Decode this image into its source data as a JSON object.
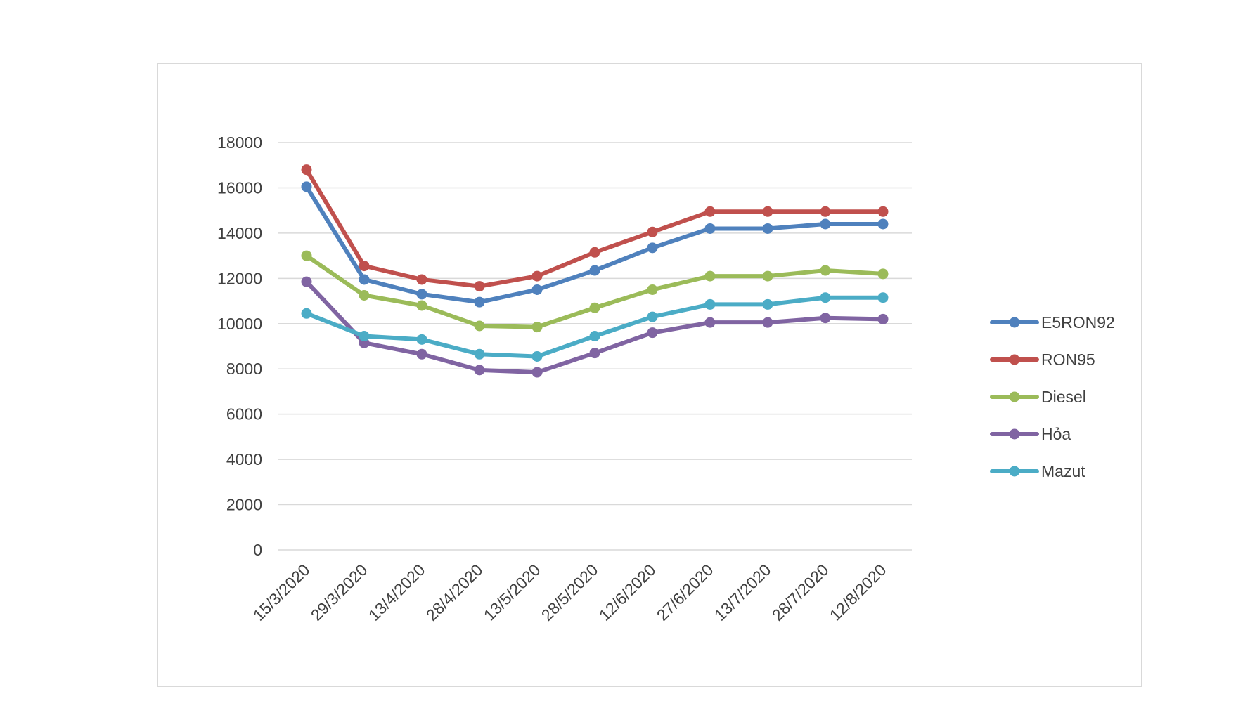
{
  "chart_data": {
    "type": "line",
    "title": "",
    "xlabel": "",
    "ylabel": "",
    "categories": [
      "15/3/2020",
      "29/3/2020",
      "13/4/2020",
      "28/4/2020",
      "13/5/2020",
      "28/5/2020",
      "12/6/2020",
      "27/6/2020",
      "13/7/2020",
      "28/7/2020",
      "12/8/2020"
    ],
    "ylim": [
      0,
      18000
    ],
    "yticks": [
      0,
      2000,
      4000,
      6000,
      8000,
      10000,
      12000,
      14000,
      16000,
      18000
    ],
    "grid": "horizontal",
    "legend_position": "right",
    "series": [
      {
        "name": "E5RON92",
        "color": "#4f81bd",
        "values": [
          16050,
          11950,
          11300,
          10950,
          11500,
          12350,
          13350,
          14200,
          14200,
          14400,
          14400
        ]
      },
      {
        "name": "RON95",
        "color": "#c0504d",
        "values": [
          16800,
          12550,
          11950,
          11650,
          12100,
          13150,
          14050,
          14950,
          14950,
          14950,
          14950
        ]
      },
      {
        "name": "Diesel",
        "color": "#9bbb59",
        "values": [
          13000,
          11250,
          10800,
          9900,
          9850,
          10700,
          11500,
          12100,
          12100,
          12350,
          12200
        ]
      },
      {
        "name": "Hỏa",
        "color": "#8064a2",
        "values": [
          11850,
          9150,
          8650,
          7950,
          7850,
          8700,
          9600,
          10050,
          10050,
          10250,
          10200
        ]
      },
      {
        "name": "Mazut",
        "color": "#4bacc6",
        "values": [
          10450,
          9450,
          9300,
          8650,
          8550,
          9450,
          10300,
          10850,
          10850,
          11150,
          11150
        ]
      }
    ]
  }
}
